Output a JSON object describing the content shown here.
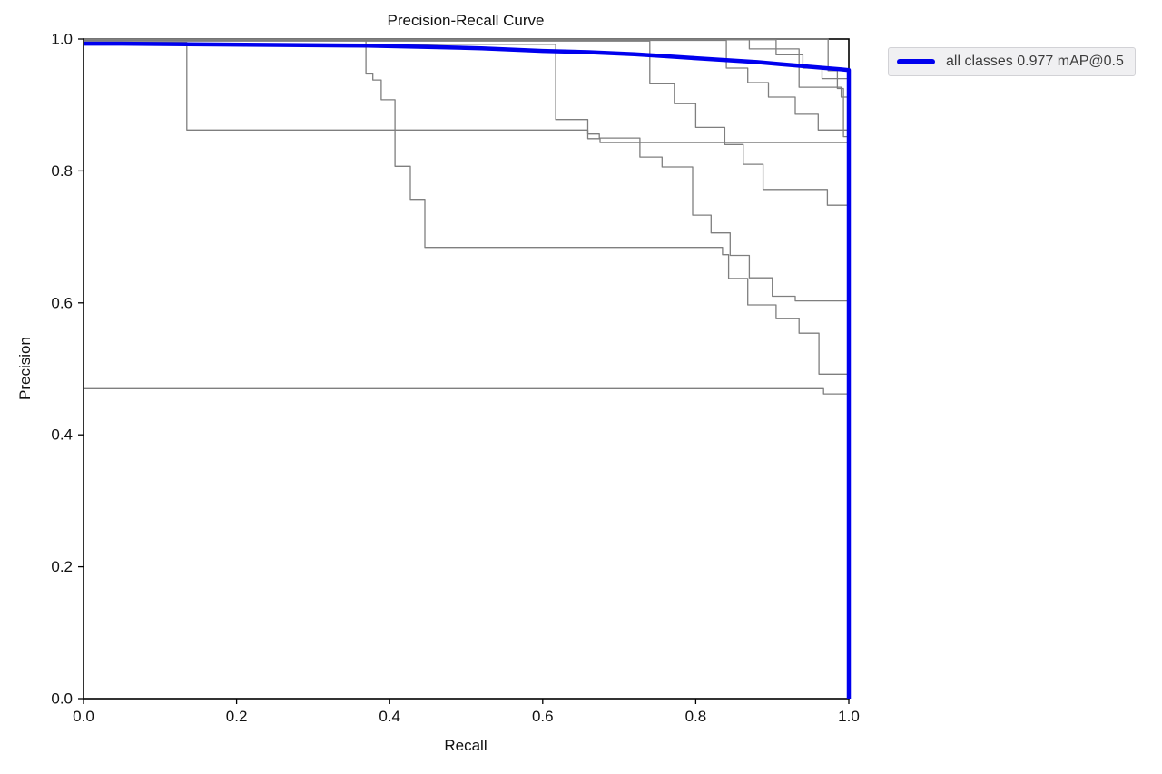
{
  "chart_data": {
    "type": "line",
    "title": "Precision-Recall Curve",
    "xlabel": "Recall",
    "ylabel": "Precision",
    "xlim": [
      0.0,
      1.0
    ],
    "ylim": [
      0.0,
      1.0
    ],
    "grid": false,
    "x_ticks": {
      "values": [
        0.0,
        0.2,
        0.4,
        0.6,
        0.8,
        1.0
      ],
      "labels": [
        "0.0",
        "0.2",
        "0.4",
        "0.6",
        "0.8",
        "1.0"
      ]
    },
    "y_ticks": {
      "values": [
        0.0,
        0.2,
        0.4,
        0.6,
        0.8,
        1.0
      ],
      "labels": [
        "0.0",
        "0.2",
        "0.4",
        "0.6",
        "0.8",
        "1.0"
      ]
    },
    "legend": {
      "position": "outside-top-right",
      "entries": [
        {
          "label": "all classes 0.977 mAP@0.5",
          "color": "#0000ee"
        }
      ]
    },
    "colors": {
      "mean_curve": "#0000ee",
      "class_curves": "#7f7f7f",
      "axis": "#000000"
    },
    "series": [
      {
        "name": "unlabeled_class_curve_1",
        "color": "#7f7f7f",
        "width": 1.3,
        "points": [
          [
            0,
            0.995
          ],
          [
            0.135,
            0.995
          ],
          [
            0.135,
            0.862
          ],
          [
            0.659,
            0.862
          ],
          [
            0.659,
            0.849
          ],
          [
            0.675,
            0.849
          ],
          [
            0.675,
            0.843
          ],
          [
            1,
            0.843
          ]
        ]
      },
      {
        "name": "unlabeled_class_curve_2",
        "color": "#7f7f7f",
        "width": 1.3,
        "points": [
          [
            0,
            0.998
          ],
          [
            0.369,
            0.998
          ],
          [
            0.369,
            0.947
          ],
          [
            0.378,
            0.947
          ],
          [
            0.378,
            0.938
          ],
          [
            0.389,
            0.938
          ],
          [
            0.389,
            0.908
          ],
          [
            0.407,
            0.908
          ],
          [
            0.407,
            0.807
          ],
          [
            0.427,
            0.807
          ],
          [
            0.427,
            0.757
          ],
          [
            0.446,
            0.757
          ],
          [
            0.446,
            0.684
          ],
          [
            0.835,
            0.684
          ],
          [
            0.835,
            0.673
          ],
          [
            0.843,
            0.673
          ],
          [
            0.843,
            0.637
          ],
          [
            0.868,
            0.637
          ],
          [
            0.868,
            0.597
          ],
          [
            0.905,
            0.597
          ],
          [
            0.905,
            0.576
          ],
          [
            0.935,
            0.576
          ],
          [
            0.935,
            0.554
          ],
          [
            0.961,
            0.554
          ],
          [
            0.961,
            0.492
          ],
          [
            1,
            0.492
          ]
        ]
      },
      {
        "name": "unlabeled_class_curve_3",
        "color": "#7f7f7f",
        "width": 1.3,
        "points": [
          [
            0,
            0.47
          ],
          [
            0.967,
            0.47
          ],
          [
            0.967,
            0.462
          ],
          [
            1,
            0.462
          ]
        ]
      },
      {
        "name": "unlabeled_class_curve_4",
        "color": "#7f7f7f",
        "width": 1.3,
        "points": [
          [
            0,
            0.992
          ],
          [
            0.617,
            0.992
          ],
          [
            0.617,
            0.878
          ],
          [
            0.659,
            0.878
          ],
          [
            0.659,
            0.856
          ],
          [
            0.674,
            0.856
          ],
          [
            0.674,
            0.85
          ],
          [
            0.727,
            0.85
          ],
          [
            0.727,
            0.821
          ],
          [
            0.756,
            0.821
          ],
          [
            0.756,
            0.806
          ],
          [
            0.796,
            0.806
          ],
          [
            0.796,
            0.733
          ],
          [
            0.82,
            0.733
          ],
          [
            0.82,
            0.706
          ],
          [
            0.845,
            0.706
          ],
          [
            0.845,
            0.672
          ],
          [
            0.87,
            0.672
          ],
          [
            0.87,
            0.638
          ],
          [
            0.9,
            0.638
          ],
          [
            0.9,
            0.61
          ],
          [
            0.93,
            0.61
          ],
          [
            0.93,
            0.603
          ],
          [
            1,
            0.603
          ]
        ]
      },
      {
        "name": "unlabeled_class_curve_5",
        "color": "#7f7f7f",
        "width": 1.3,
        "points": [
          [
            0,
            0.997
          ],
          [
            0.74,
            0.997
          ],
          [
            0.74,
            0.932
          ],
          [
            0.772,
            0.932
          ],
          [
            0.772,
            0.902
          ],
          [
            0.8,
            0.902
          ],
          [
            0.8,
            0.866
          ],
          [
            0.838,
            0.866
          ],
          [
            0.838,
            0.84
          ],
          [
            0.862,
            0.84
          ],
          [
            0.862,
            0.81
          ],
          [
            0.888,
            0.81
          ],
          [
            0.888,
            0.772
          ],
          [
            0.972,
            0.772
          ],
          [
            0.972,
            0.748
          ],
          [
            1,
            0.748
          ]
        ]
      },
      {
        "name": "unlabeled_class_curve_6",
        "color": "#7f7f7f",
        "width": 1.3,
        "points": [
          [
            0,
            0.998
          ],
          [
            0.84,
            0.998
          ],
          [
            0.84,
            0.956
          ],
          [
            0.868,
            0.956
          ],
          [
            0.868,
            0.934
          ],
          [
            0.895,
            0.934
          ],
          [
            0.895,
            0.912
          ],
          [
            0.93,
            0.912
          ],
          [
            0.93,
            0.886
          ],
          [
            0.96,
            0.886
          ],
          [
            0.96,
            0.862
          ],
          [
            1,
            0.862
          ]
        ]
      },
      {
        "name": "unlabeled_class_curve_7",
        "color": "#7f7f7f",
        "width": 1.3,
        "points": [
          [
            0,
            0.999
          ],
          [
            0.905,
            0.999
          ],
          [
            0.905,
            0.976
          ],
          [
            0.94,
            0.976
          ],
          [
            0.94,
            0.956
          ],
          [
            0.965,
            0.956
          ],
          [
            0.965,
            0.94
          ],
          [
            1,
            0.94
          ]
        ]
      },
      {
        "name": "unlabeled_class_curve_8",
        "color": "#7f7f7f",
        "width": 1.3,
        "points": [
          [
            0,
            0.999
          ],
          [
            0.87,
            0.999
          ],
          [
            0.87,
            0.985
          ],
          [
            0.935,
            0.985
          ],
          [
            0.935,
            0.927
          ],
          [
            0.99,
            0.927
          ],
          [
            0.99,
            0.912
          ],
          [
            1,
            0.912
          ]
        ]
      },
      {
        "name": "unlabeled_class_curve_9",
        "color": "#7f7f7f",
        "width": 1.3,
        "points": [
          [
            0,
            1.0
          ],
          [
            0.973,
            1.0
          ],
          [
            0.973,
            0.952
          ],
          [
            0.985,
            0.952
          ],
          [
            0.985,
            0.925
          ],
          [
            0.993,
            0.925
          ],
          [
            0.993,
            0.852
          ],
          [
            1,
            0.852
          ]
        ]
      },
      {
        "name": "all_classes_mean_curve",
        "color": "#0000ee",
        "width": 4.5,
        "points": [
          [
            0,
            0.993
          ],
          [
            0.05,
            0.993
          ],
          [
            0.135,
            0.992
          ],
          [
            0.25,
            0.991
          ],
          [
            0.37,
            0.99
          ],
          [
            0.45,
            0.988
          ],
          [
            0.52,
            0.986
          ],
          [
            0.6,
            0.982
          ],
          [
            0.66,
            0.98
          ],
          [
            0.72,
            0.977
          ],
          [
            0.76,
            0.974
          ],
          [
            0.8,
            0.971
          ],
          [
            0.84,
            0.968
          ],
          [
            0.88,
            0.965
          ],
          [
            0.91,
            0.962
          ],
          [
            0.94,
            0.959
          ],
          [
            0.97,
            0.956
          ],
          [
            0.99,
            0.954
          ],
          [
            1.0,
            0.953
          ],
          [
            1.0,
            0.0
          ]
        ]
      }
    ]
  }
}
